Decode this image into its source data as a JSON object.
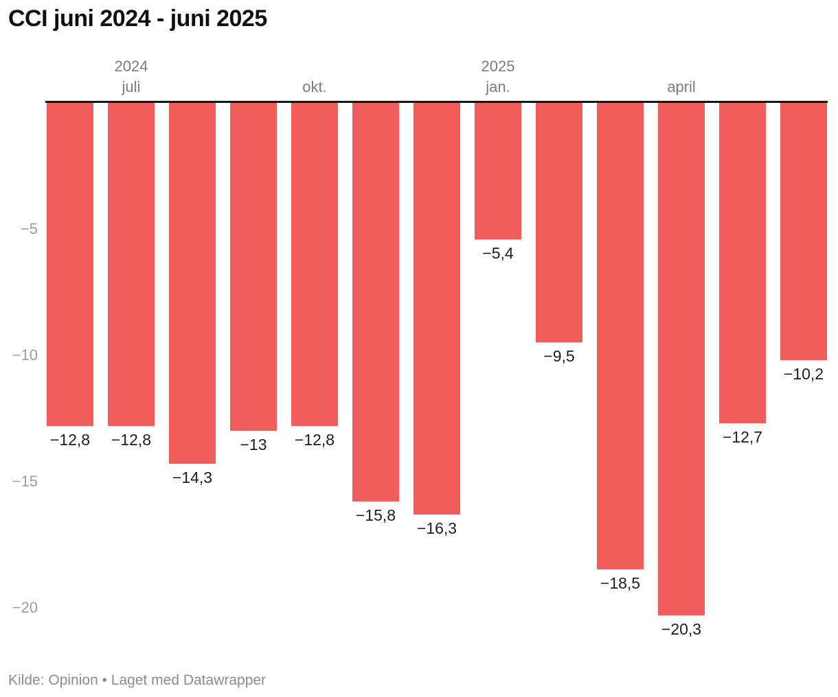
{
  "header": {
    "title": "CCI juni 2024 - juni 2025"
  },
  "footer": {
    "source": "Kilde: Opinion • Laget med Datawrapper"
  },
  "colors": {
    "bar": "#f15d5b",
    "axis_line": "#161616",
    "tick_text": "#7c7c7c",
    "y_tick_text": "#9d9d9d",
    "value_text": "#1d1d1d"
  },
  "chart_data": {
    "type": "bar",
    "title": "CCI juni 2024 - juni 2025",
    "values": [
      -12.8,
      -12.8,
      -14.3,
      -13,
      -12.8,
      -15.8,
      -16.3,
      -5.4,
      -9.5,
      -18.5,
      -20.3,
      -12.7,
      -10.2
    ],
    "value_labels": [
      "−12,8",
      "−12,8",
      "−14,3",
      "−13",
      "−12,8",
      "−15,8",
      "−16,3",
      "−5,4",
      "−9,5",
      "−18,5",
      "−20,3",
      "−12,7",
      "−10,2"
    ],
    "x_ticks": [
      {
        "bar_index": 1,
        "year": "2024",
        "label": "juli"
      },
      {
        "bar_index": 4,
        "year": "",
        "label": "okt."
      },
      {
        "bar_index": 7,
        "year": "2025",
        "label": "jan."
      },
      {
        "bar_index": 10,
        "year": "",
        "label": "april"
      }
    ],
    "y_ticks": [
      {
        "value": -5,
        "label": "−5"
      },
      {
        "value": -10,
        "label": "−10"
      },
      {
        "value": -15,
        "label": "−15"
      },
      {
        "value": -20,
        "label": "−20"
      }
    ],
    "ylim": [
      0,
      -21
    ],
    "grid": false,
    "legend": false,
    "bar_color": "#f15d5b"
  }
}
